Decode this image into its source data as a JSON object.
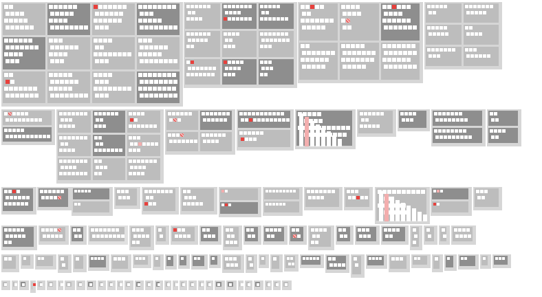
{
  "view": {
    "title": "",
    "kind": "nested block-matrix overview",
    "colors": {
      "background": "#ffffff",
      "panel": "#d6d6d6",
      "panel_dark": "#bdbdbd",
      "block_dark": "#8e8e8e",
      "cell": "#ffffff",
      "accent_red": "#e8403c",
      "accent_pink": "#f3aeae"
    }
  },
  "bands": [
    {
      "name": "band-1",
      "panel_count": 4,
      "highlighted_panels": 4
    },
    {
      "name": "band-2",
      "panel_count": 9,
      "highlighted_panels": 7
    },
    {
      "name": "band-3",
      "panel_count": 13,
      "highlighted_panels": 6
    },
    {
      "name": "band-4",
      "panel_count": 20,
      "highlighted_panels": 3
    },
    {
      "name": "band-5",
      "panel_count": 32,
      "highlighted_panels": 5
    },
    {
      "name": "band-6",
      "panel_count": 40,
      "highlighted_panels": 1
    }
  ],
  "icons": {
    "cell": "square-cell-icon",
    "highlight": "red-cell-icon"
  }
}
